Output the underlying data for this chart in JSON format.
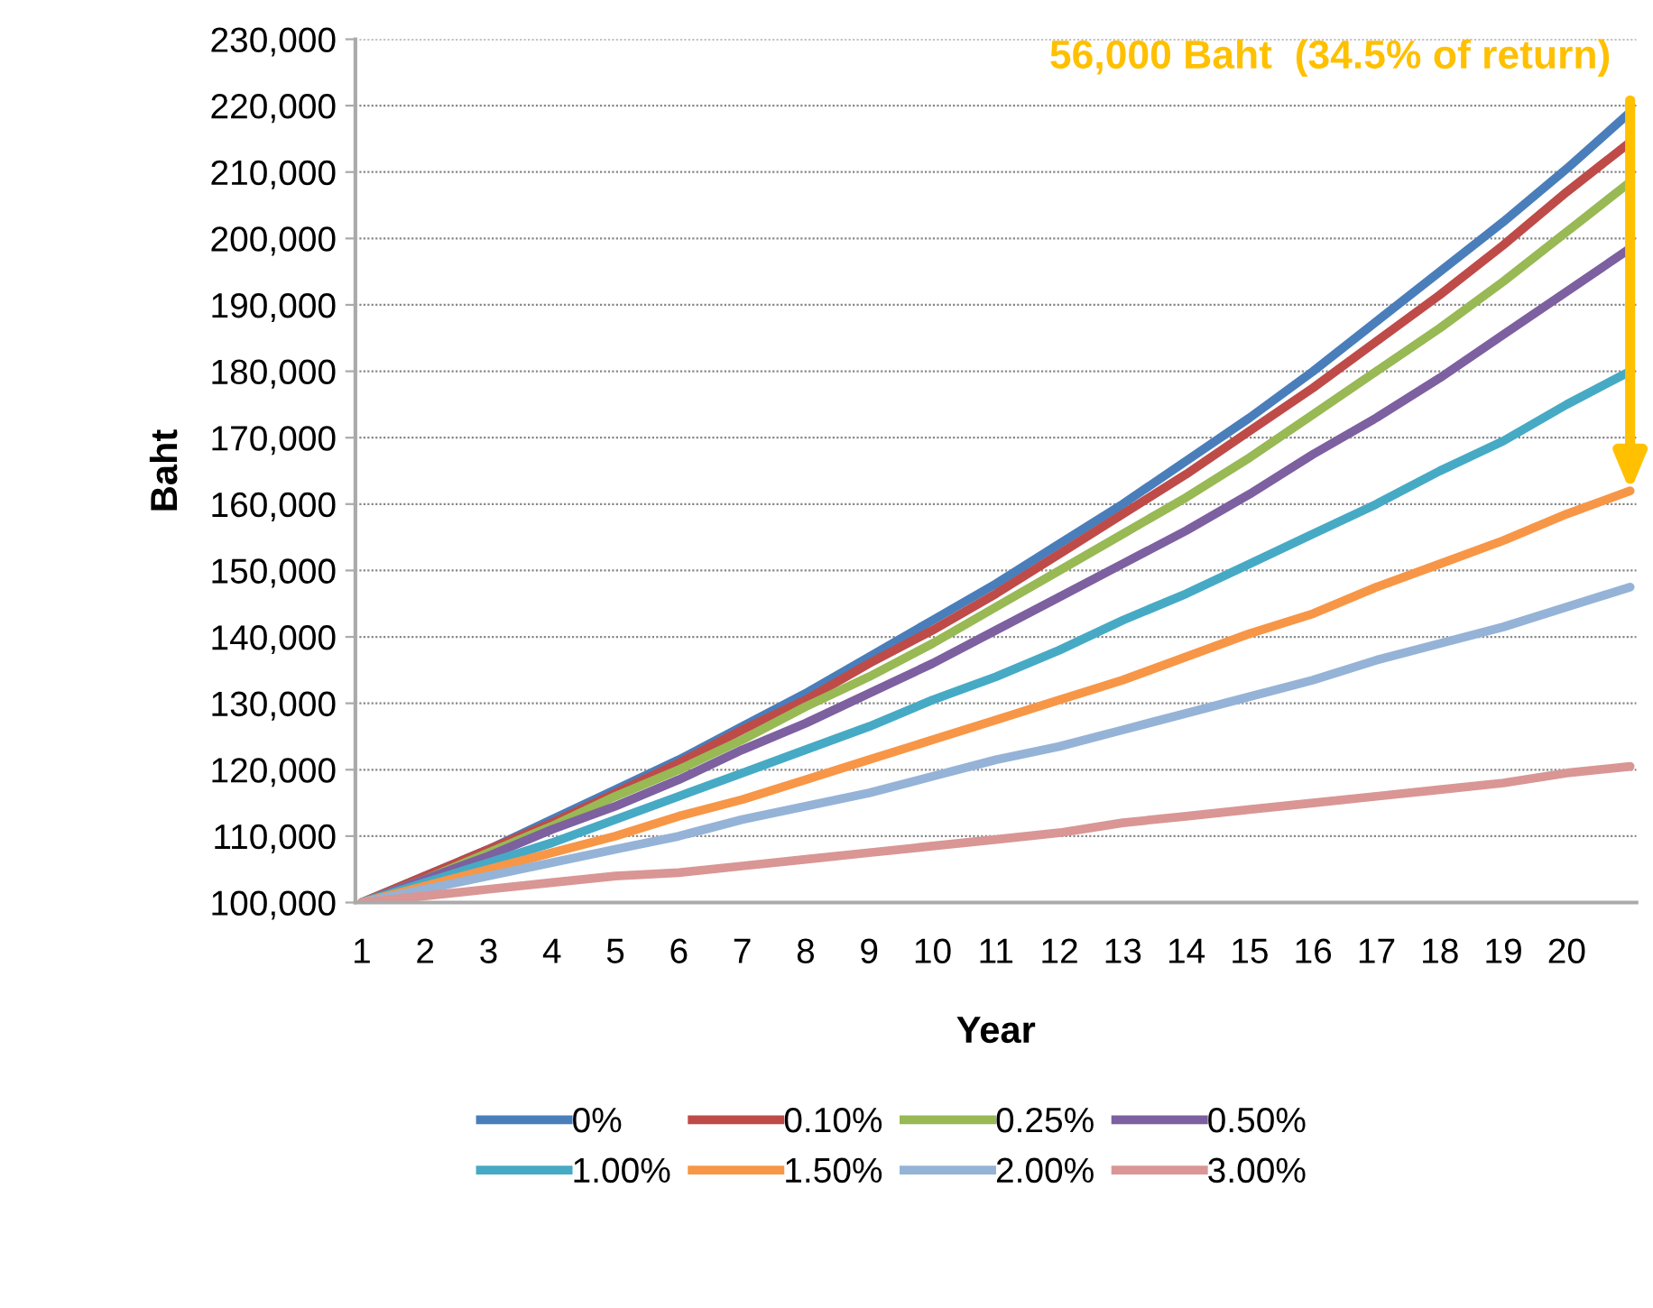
{
  "chart_data": {
    "type": "line",
    "xlabel": "Year",
    "ylabel": "Baht",
    "categories": [
      "1",
      "2",
      "3",
      "4",
      "5",
      "6",
      "7",
      "8",
      "9",
      "10",
      "11",
      "12",
      "13",
      "14",
      "15",
      "16",
      "17",
      "18",
      "19",
      "20",
      null
    ],
    "ylim": [
      100000,
      230000
    ],
    "yticks": [
      {
        "value": 100000,
        "label": "100,000"
      },
      {
        "value": 110000,
        "label": "110,000"
      },
      {
        "value": 120000,
        "label": "120,000"
      },
      {
        "value": 130000,
        "label": "130,000"
      },
      {
        "value": 140000,
        "label": "140,000"
      },
      {
        "value": 150000,
        "label": "150,000"
      },
      {
        "value": 160000,
        "label": "160,000"
      },
      {
        "value": 170000,
        "label": "170,000"
      },
      {
        "value": 180000,
        "label": "180,000"
      },
      {
        "value": 190000,
        "label": "190,000"
      },
      {
        "value": 200000,
        "label": "200,000"
      },
      {
        "value": 210000,
        "label": "210,000"
      },
      {
        "value": 220000,
        "label": "220,000"
      },
      {
        "value": 230000,
        "label": "230,000"
      }
    ],
    "grid": "y",
    "legend": "bottom",
    "marker": "none",
    "line_style": "solid",
    "annotations": [
      "56,000 Baht  (34.5% of return)"
    ],
    "series": [
      {
        "name": "0%",
        "color": "#4a7ebb",
        "values": [
          100000,
          104000,
          108000,
          112500,
          117000,
          121500,
          126500,
          131500,
          137000,
          142500,
          148000,
          154000,
          160000,
          166500,
          173000,
          180000,
          187500,
          195000,
          202500,
          210500,
          219000
        ]
      },
      {
        "name": "0.10%",
        "color": "#be4b48",
        "values": [
          100000,
          104000,
          108000,
          112000,
          116500,
          121000,
          126000,
          130500,
          136000,
          141000,
          146500,
          152500,
          158500,
          164500,
          171000,
          177500,
          184500,
          191500,
          199000,
          207000,
          214500
        ]
      },
      {
        "name": "0.25%",
        "color": "#98b954",
        "values": [
          100000,
          103500,
          107500,
          111500,
          116000,
          120000,
          124500,
          129500,
          134000,
          139000,
          144500,
          150000,
          155500,
          161000,
          167000,
          173500,
          180000,
          186500,
          193500,
          201000,
          208500
        ]
      },
      {
        "name": "0.50%",
        "color": "#7d60a0",
        "values": [
          100000,
          103500,
          107000,
          111000,
          114500,
          118500,
          123000,
          127000,
          131500,
          136000,
          141000,
          146000,
          151000,
          156000,
          161500,
          167500,
          173000,
          179000,
          185500,
          192000,
          198500
        ]
      },
      {
        "name": "1.00%",
        "color": "#46aac5",
        "values": [
          100000,
          103000,
          106000,
          109000,
          112500,
          116000,
          119500,
          123000,
          126500,
          130500,
          134000,
          138000,
          142500,
          146500,
          151000,
          155500,
          160000,
          165000,
          169500,
          175000,
          180000
        ]
      },
      {
        "name": "1.50%",
        "color": "#f79646",
        "values": [
          100000,
          102500,
          105000,
          107500,
          110000,
          113000,
          115500,
          118500,
          121500,
          124500,
          127500,
          130500,
          133500,
          137000,
          140500,
          143500,
          147500,
          151000,
          154500,
          158500,
          162000
        ]
      },
      {
        "name": "2.00%",
        "color": "#95b3d7",
        "values": [
          100000,
          102000,
          104000,
          106000,
          108000,
          110000,
          112500,
          114500,
          116500,
          119000,
          121500,
          123500,
          126000,
          128500,
          131000,
          133500,
          136500,
          139000,
          141500,
          144500,
          147500
        ]
      },
      {
        "name": "3.00%",
        "color": "#d99694",
        "values": [
          100000,
          101000,
          102000,
          103000,
          104000,
          104500,
          105500,
          106500,
          107500,
          108500,
          109500,
          110500,
          112000,
          113000,
          114000,
          115000,
          116000,
          117000,
          118000,
          119500,
          120500
        ]
      }
    ]
  }
}
